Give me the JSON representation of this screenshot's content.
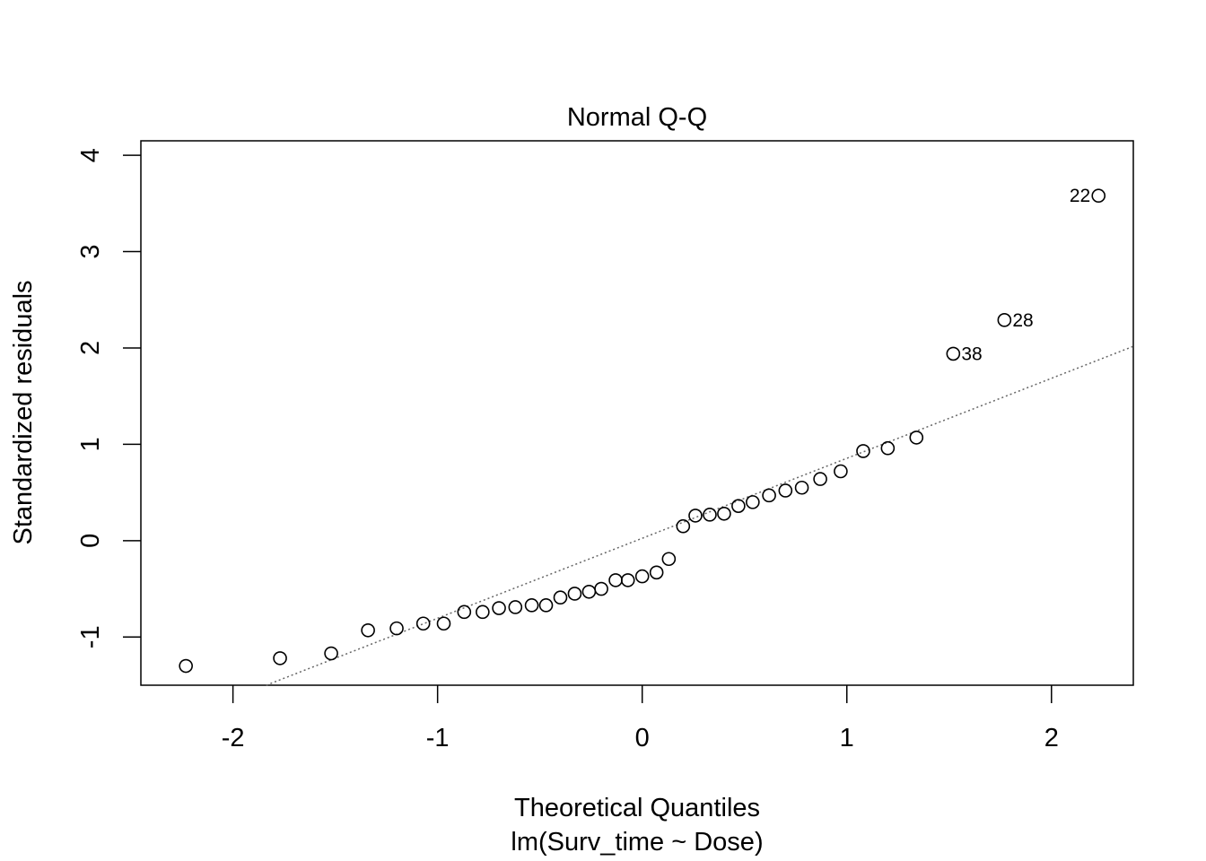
{
  "chart_data": {
    "type": "scatter",
    "title": "Normal Q-Q",
    "xlabel": "Theoretical Quantiles",
    "sublabel": "lm(Surv_time ~ Dose)",
    "ylabel": "Standardized residuals",
    "xlim": [
      -2.45,
      2.4
    ],
    "ylim": [
      -1.5,
      4.15
    ],
    "x_ticks": [
      -2,
      -1,
      0,
      1,
      2
    ],
    "x_tick_labels": [
      "-2",
      "-1",
      "0",
      "1",
      "2"
    ],
    "y_ticks": [
      -1,
      0,
      1,
      2,
      3,
      4
    ],
    "y_tick_labels": [
      "-1",
      "0",
      "1",
      "2",
      "3",
      "4"
    ],
    "grid": false,
    "reference_line": {
      "style": "dotted",
      "color": "#666666",
      "intercept": 0.025,
      "slope": 0.83
    },
    "points": [
      {
        "x": -2.23,
        "y": -1.3
      },
      {
        "x": -1.77,
        "y": -1.22
      },
      {
        "x": -1.52,
        "y": -1.17
      },
      {
        "x": -1.34,
        "y": -0.93
      },
      {
        "x": -1.2,
        "y": -0.91
      },
      {
        "x": -1.07,
        "y": -0.86
      },
      {
        "x": -0.97,
        "y": -0.86
      },
      {
        "x": -0.87,
        "y": -0.74
      },
      {
        "x": -0.78,
        "y": -0.74
      },
      {
        "x": -0.7,
        "y": -0.7
      },
      {
        "x": -0.62,
        "y": -0.69
      },
      {
        "x": -0.54,
        "y": -0.67
      },
      {
        "x": -0.47,
        "y": -0.67
      },
      {
        "x": -0.4,
        "y": -0.59
      },
      {
        "x": -0.33,
        "y": -0.55
      },
      {
        "x": -0.26,
        "y": -0.53
      },
      {
        "x": -0.2,
        "y": -0.5
      },
      {
        "x": -0.13,
        "y": -0.41
      },
      {
        "x": -0.07,
        "y": -0.41
      },
      {
        "x": 0.0,
        "y": -0.37
      },
      {
        "x": 0.07,
        "y": -0.33
      },
      {
        "x": 0.13,
        "y": -0.19
      },
      {
        "x": 0.2,
        "y": 0.15
      },
      {
        "x": 0.26,
        "y": 0.26
      },
      {
        "x": 0.33,
        "y": 0.27
      },
      {
        "x": 0.4,
        "y": 0.28
      },
      {
        "x": 0.47,
        "y": 0.36
      },
      {
        "x": 0.54,
        "y": 0.4
      },
      {
        "x": 0.62,
        "y": 0.47
      },
      {
        "x": 0.7,
        "y": 0.52
      },
      {
        "x": 0.78,
        "y": 0.55
      },
      {
        "x": 0.87,
        "y": 0.64
      },
      {
        "x": 0.97,
        "y": 0.72
      },
      {
        "x": 1.08,
        "y": 0.93
      },
      {
        "x": 1.2,
        "y": 0.96
      },
      {
        "x": 1.34,
        "y": 1.07
      },
      {
        "x": 1.52,
        "y": 1.94,
        "label": "38",
        "label_side": "right"
      },
      {
        "x": 1.77,
        "y": 2.29,
        "label": "28",
        "label_side": "right"
      },
      {
        "x": 2.23,
        "y": 3.58,
        "label": "22",
        "label_side": "left"
      }
    ]
  }
}
